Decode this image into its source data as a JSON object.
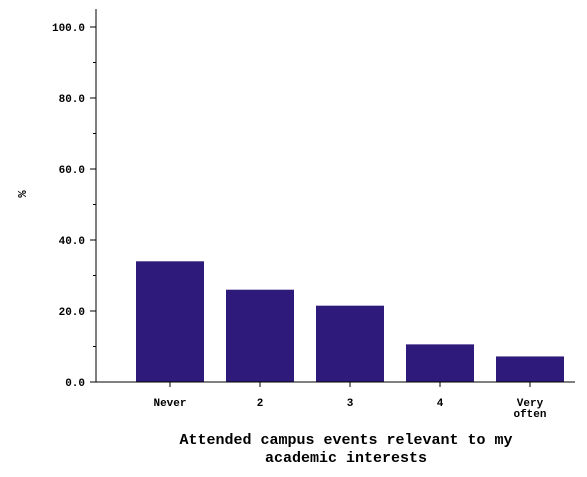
{
  "chart_data": {
    "type": "bar",
    "categories": [
      "Never",
      "2",
      "3",
      "4",
      "Very often"
    ],
    "category_label_lines": [
      [
        "Never"
      ],
      [
        "2"
      ],
      [
        "3"
      ],
      [
        "4"
      ],
      [
        "Very",
        "often"
      ]
    ],
    "values": [
      34.0,
      26.0,
      21.5,
      10.6,
      7.2
    ],
    "xlabel_lines": [
      "Attended campus events relevant to my",
      "academic interests"
    ],
    "ylabel": "%",
    "ylim": [
      0,
      100
    ],
    "yticks": [
      "0.0",
      "20.0",
      "40.0",
      "60.0",
      "80.0",
      "100.0"
    ],
    "ytick_values": [
      0,
      20,
      40,
      60,
      80,
      100
    ],
    "bar_color": "#2e1a7a",
    "grid": false
  }
}
